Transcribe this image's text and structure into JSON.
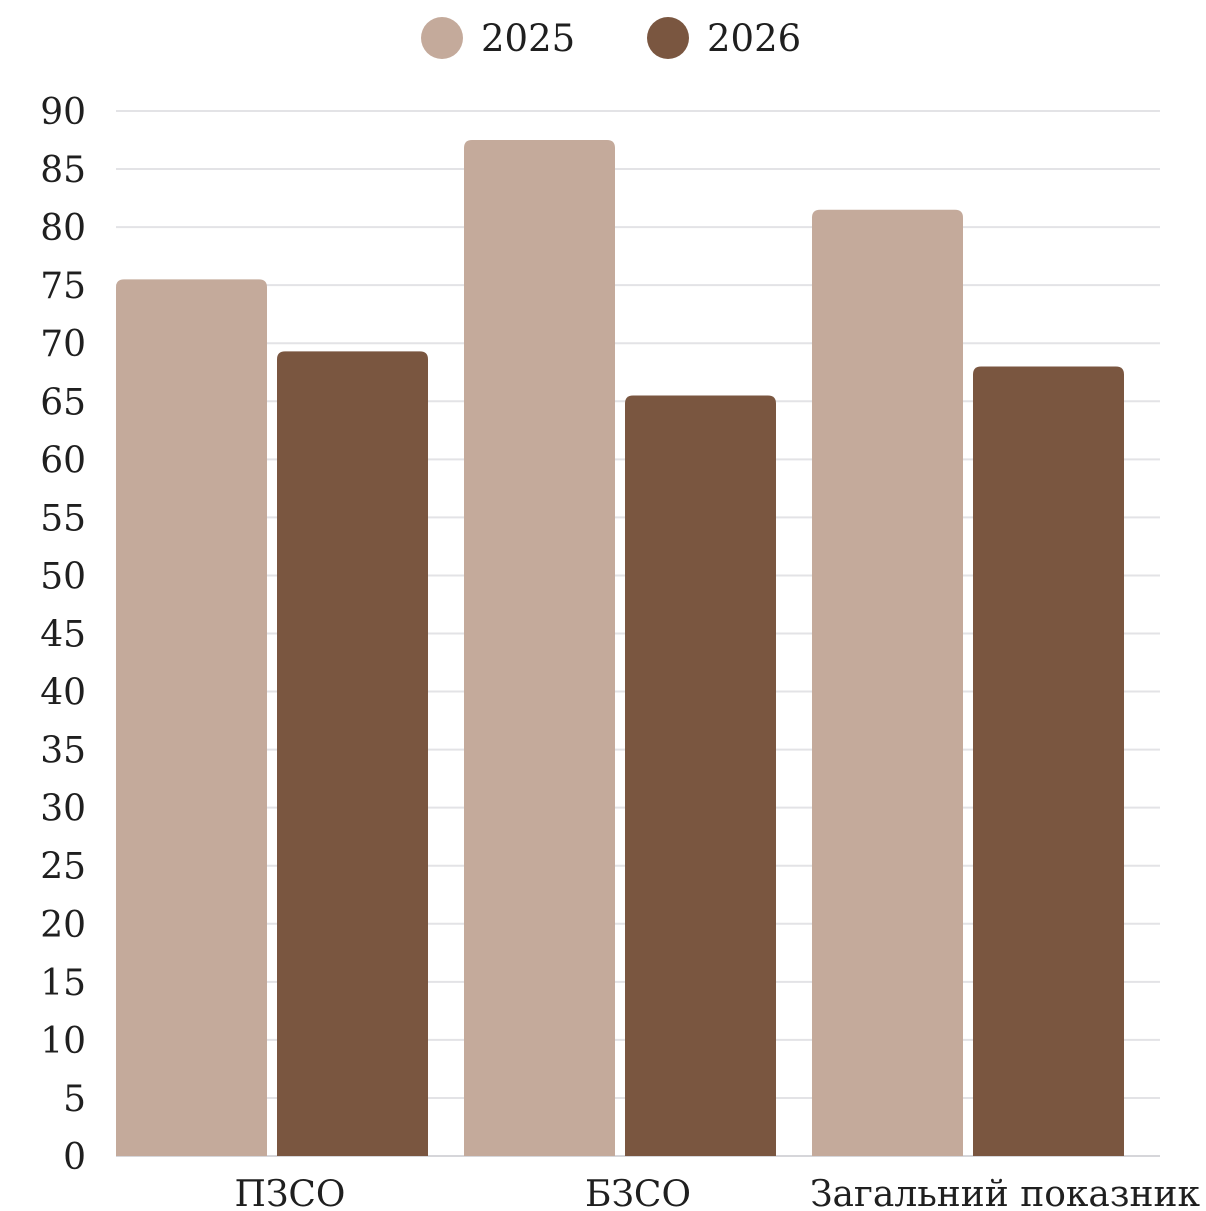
{
  "chart_data": {
    "type": "bar",
    "categories": [
      "ПЗСО",
      "БЗСО",
      "Загальний показник"
    ],
    "series": [
      {
        "name": "2025",
        "values": [
          75.5,
          87.5,
          81.5
        ],
        "color": "#c4aa9b"
      },
      {
        "name": "2026",
        "values": [
          69.3,
          65.5,
          68
        ],
        "color": "#7a5640"
      }
    ],
    "ylim": [
      0,
      90
    ],
    "yticks": [
      0,
      5,
      10,
      15,
      20,
      25,
      30,
      35,
      40,
      45,
      50,
      55,
      60,
      65,
      70,
      75,
      80,
      85,
      90
    ],
    "grid": true,
    "legend_position": "top-center"
  }
}
